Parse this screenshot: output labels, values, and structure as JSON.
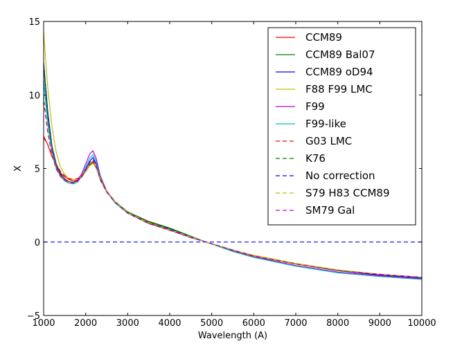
{
  "chart_data": {
    "type": "line",
    "title": "",
    "xlabel": "Wavelength (A)",
    "ylabel": "X",
    "xlim": [
      1000,
      10000
    ],
    "ylim": [
      -5,
      15
    ],
    "xticks": [
      1000,
      2000,
      3000,
      4000,
      5000,
      6000,
      7000,
      8000,
      9000,
      10000
    ],
    "yticks": [
      -5,
      0,
      5,
      10,
      15
    ],
    "x_tick_labels": [
      "1000",
      "2000",
      "3000",
      "4000",
      "5000",
      "6000",
      "7000",
      "8000",
      "9000",
      "10000"
    ],
    "y_tick_labels": [
      "−5",
      "0",
      "5",
      "10",
      "15"
    ],
    "grid": false,
    "legend_position": "top-right",
    "x": [
      1000,
      1100,
      1200,
      1300,
      1400,
      1500,
      1600,
      1700,
      1800,
      1900,
      2000,
      2100,
      2175,
      2250,
      2350,
      2500,
      2700,
      3000,
      3500,
      4000,
      4500,
      4860,
      5500,
      6000,
      7000,
      8000,
      9000,
      10000
    ],
    "series": [
      {
        "name": "CCM89",
        "color": "#ff0000",
        "dash": "solid",
        "values": [
          7.2,
          6.6,
          5.8,
          5.2,
          4.7,
          4.45,
          4.25,
          4.15,
          4.2,
          4.4,
          4.8,
          5.25,
          5.45,
          5.1,
          4.2,
          3.4,
          2.75,
          2.0,
          1.35,
          0.9,
          0.35,
          0.0,
          -0.55,
          -0.95,
          -1.5,
          -1.95,
          -2.2,
          -2.4
        ]
      },
      {
        "name": "CCM89 Bal07",
        "color": "#008000",
        "dash": "solid",
        "values": [
          12.0,
          8.6,
          6.4,
          5.2,
          4.6,
          4.3,
          4.1,
          4.05,
          4.15,
          4.4,
          4.85,
          5.3,
          5.5,
          5.1,
          4.2,
          3.4,
          2.75,
          2.05,
          1.4,
          0.95,
          0.4,
          0.0,
          -0.55,
          -0.95,
          -1.5,
          -1.95,
          -2.2,
          -2.45
        ]
      },
      {
        "name": "CCM89 oD94",
        "color": "#0000ff",
        "dash": "solid",
        "values": [
          12.2,
          8.8,
          6.5,
          5.3,
          4.65,
          4.3,
          4.1,
          4.05,
          4.15,
          4.45,
          4.95,
          5.5,
          5.75,
          5.3,
          4.3,
          3.4,
          2.7,
          2.0,
          1.3,
          0.9,
          0.35,
          0.0,
          -0.55,
          -0.95,
          -1.5,
          -1.95,
          -2.25,
          -2.45
        ]
      },
      {
        "name": "F88 F99 LMC",
        "color": "#bfbf00",
        "dash": "solid",
        "values": [
          14.3,
          10.4,
          7.8,
          6.1,
          5.1,
          4.6,
          4.35,
          4.25,
          4.3,
          4.5,
          4.85,
          5.2,
          5.35,
          5.05,
          4.3,
          3.45,
          2.75,
          2.0,
          1.3,
          0.85,
          0.35,
          0.0,
          -0.55,
          -0.9,
          -1.45,
          -1.9,
          -2.2,
          -2.4
        ]
      },
      {
        "name": "F99",
        "color": "#bf00bf",
        "dash": "solid",
        "values": [
          11.0,
          8.2,
          6.2,
          5.1,
          4.55,
          4.25,
          4.1,
          4.05,
          4.2,
          4.6,
          5.3,
          6.0,
          6.2,
          5.7,
          4.5,
          3.45,
          2.7,
          2.0,
          1.3,
          0.85,
          0.35,
          0.0,
          -0.6,
          -1.0,
          -1.6,
          -2.05,
          -2.3,
          -2.5
        ]
      },
      {
        "name": "F99-like",
        "color": "#00bfbf",
        "dash": "solid",
        "values": [
          11.0,
          8.0,
          6.1,
          5.0,
          4.45,
          4.15,
          4.0,
          3.95,
          4.05,
          4.45,
          5.1,
          5.7,
          5.95,
          5.5,
          4.4,
          3.4,
          2.65,
          1.95,
          1.25,
          0.8,
          0.3,
          0.0,
          -0.65,
          -1.05,
          -1.65,
          -2.1,
          -2.35,
          -2.55
        ]
      },
      {
        "name": "G03 LMC",
        "color": "#ff0000",
        "dash": "dashed",
        "values": [
          7.1,
          6.6,
          5.9,
          5.3,
          4.8,
          4.5,
          4.3,
          4.25,
          4.3,
          4.5,
          4.85,
          5.25,
          5.4,
          5.05,
          4.3,
          3.45,
          2.75,
          2.0,
          1.25,
          0.8,
          0.3,
          0.0,
          -0.55,
          -0.95,
          -1.5,
          -1.95,
          -2.2,
          -2.4
        ]
      },
      {
        "name": "K76",
        "color": "#008000",
        "dash": "dashed",
        "values": [
          12.0,
          8.6,
          6.4,
          5.2,
          4.6,
          4.3,
          4.1,
          4.05,
          4.15,
          4.4,
          4.85,
          5.3,
          5.5,
          5.1,
          4.2,
          3.4,
          2.75,
          2.05,
          1.35,
          0.9,
          0.35,
          0.0,
          -0.55,
          -0.95,
          -1.5,
          -1.95,
          -2.2,
          -2.4
        ]
      },
      {
        "name": "No correction",
        "color": "#0000ff",
        "dash": "dashed",
        "values": [
          0,
          0,
          0,
          0,
          0,
          0,
          0,
          0,
          0,
          0,
          0,
          0,
          0,
          0,
          0,
          0,
          0,
          0,
          0,
          0,
          0,
          0,
          0,
          0,
          0,
          0,
          0,
          0
        ]
      },
      {
        "name": "S79 H83 CCM89",
        "color": "#bfbf00",
        "dash": "dashed",
        "values": [
          10.0,
          7.6,
          6.0,
          5.0,
          4.5,
          4.2,
          4.05,
          4.0,
          4.1,
          4.4,
          4.85,
          5.3,
          5.5,
          5.1,
          4.2,
          3.4,
          2.75,
          2.0,
          1.3,
          0.85,
          0.35,
          0.0,
          -0.55,
          -0.95,
          -1.5,
          -1.9,
          -2.2,
          -2.4
        ]
      },
      {
        "name": "SM79 Gal",
        "color": "#bf00bf",
        "dash": "dashed",
        "values": [
          9.6,
          7.4,
          5.9,
          4.95,
          4.45,
          4.2,
          4.05,
          4.0,
          4.1,
          4.4,
          4.9,
          5.4,
          5.6,
          5.2,
          4.3,
          3.4,
          2.7,
          1.95,
          1.25,
          0.85,
          0.3,
          0.0,
          -0.55,
          -0.95,
          -1.5,
          -1.95,
          -2.2,
          -2.4
        ]
      }
    ]
  }
}
